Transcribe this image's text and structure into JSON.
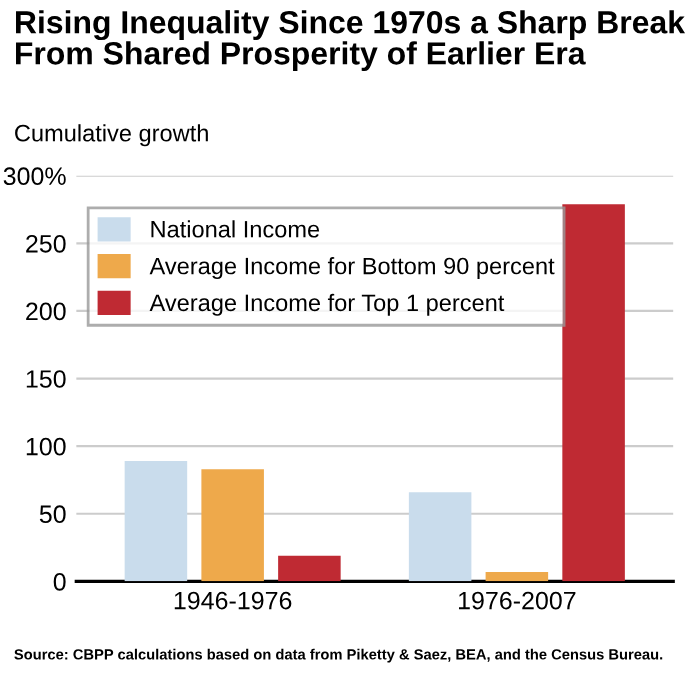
{
  "chart_data": {
    "type": "bar",
    "title": "Rising Inequality Since 1970s a Sharp Break\nFrom Shared Prosperity of Earlier Era",
    "ylabel": "Cumulative growth",
    "categories": [
      "1946-1976",
      "1976-2007"
    ],
    "series": [
      {
        "name": "National Income",
        "color": "#c9dcec",
        "values": [
          89,
          66
        ]
      },
      {
        "name": "Average Income for Bottom 90 percent",
        "color": "#eea94b",
        "values": [
          83,
          7
        ]
      },
      {
        "name": "Average Income for Top 1 percent",
        "color": "#bf2a33",
        "values": [
          19,
          279
        ]
      }
    ],
    "ylim": [
      0,
      300
    ],
    "yticks": [
      0,
      50,
      100,
      150,
      200,
      250,
      {
        "value": 300,
        "label": "300%"
      }
    ],
    "grid": "y",
    "legend": "top left",
    "annotations": [
      "Source: CBPP calculations based on data from Piketty & Saez, BEA, and the Census Bureau."
    ]
  }
}
